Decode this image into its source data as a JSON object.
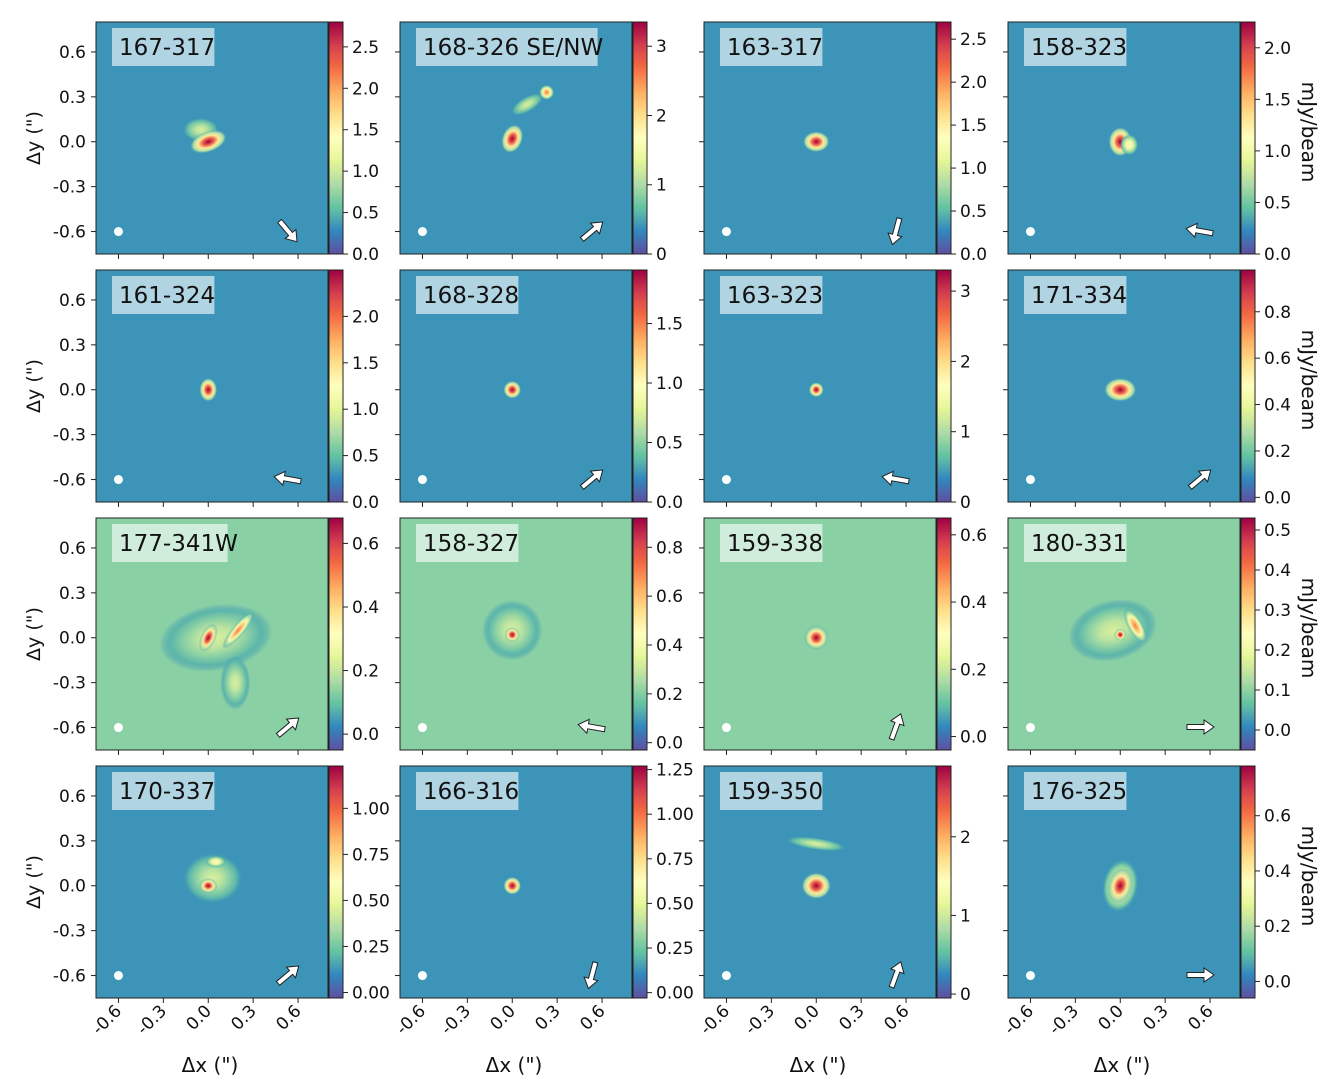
{
  "figure": {
    "xlabel": "Δx (\")",
    "ylabel": "Δy (\")",
    "colorbar_label": "mJy/beam",
    "axis_ticks": [
      "-0.6",
      "-0.3",
      "0.0",
      "0.3",
      "0.6"
    ],
    "axis_tick_values": [
      -0.6,
      -0.3,
      0.0,
      0.3,
      0.6
    ],
    "axis_range": [
      -0.75,
      0.8
    ],
    "colormap": [
      "#5e4fa2",
      "#3288bd",
      "#66c2a5",
      "#abdda4",
      "#e6f598",
      "#ffffbf",
      "#fee08b",
      "#fdae61",
      "#f46d43",
      "#d53e4f",
      "#9e0142"
    ]
  },
  "chart_data": [
    {
      "type": "heatmap",
      "title": "167-317",
      "xlabel": "Δx (\")",
      "ylabel": "Δy (\")",
      "xlim": [
        -0.75,
        0.8
      ],
      "ylim": [
        -0.75,
        0.8
      ],
      "colorbar": {
        "label": "mJy/beam",
        "range": [
          0.0,
          2.8
        ],
        "ticks": [
          "0.0",
          "0.5",
          "1.0",
          "1.5",
          "2.0",
          "2.5"
        ]
      },
      "beam": [
        -0.6,
        -0.6
      ],
      "arrow_direction": "down-right"
    },
    {
      "type": "heatmap",
      "title": "168-326 SE/NW",
      "xlabel": "Δx (\")",
      "ylabel": "Δy (\")",
      "xlim": [
        -0.75,
        0.8
      ],
      "ylim": [
        -0.75,
        0.8
      ],
      "colorbar": {
        "label": "mJy/beam",
        "range": [
          0.0,
          3.35
        ],
        "ticks": [
          "0",
          "1",
          "2",
          "3"
        ]
      },
      "beam": [
        -0.6,
        -0.6
      ],
      "arrow_direction": "up-right"
    },
    {
      "type": "heatmap",
      "title": "163-317",
      "xlabel": "Δx (\")",
      "ylabel": "Δy (\")",
      "xlim": [
        -0.75,
        0.8
      ],
      "ylim": [
        -0.75,
        0.8
      ],
      "colorbar": {
        "label": "mJy/beam",
        "range": [
          0.0,
          2.7
        ],
        "ticks": [
          "0.0",
          "0.5",
          "1.0",
          "1.5",
          "2.0",
          "2.5"
        ]
      },
      "beam": [
        -0.6,
        -0.6
      ],
      "arrow_direction": "down"
    },
    {
      "type": "heatmap",
      "title": "158-323",
      "xlabel": "Δx (\")",
      "ylabel": "Δy (\")",
      "xlim": [
        -0.75,
        0.8
      ],
      "ylim": [
        -0.75,
        0.8
      ],
      "colorbar": {
        "label": "mJy/beam",
        "range": [
          0.0,
          2.25
        ],
        "ticks": [
          "0.0",
          "0.5",
          "1.0",
          "1.5",
          "2.0"
        ]
      },
      "beam": [
        -0.6,
        -0.6
      ],
      "arrow_direction": "left"
    },
    {
      "type": "heatmap",
      "title": "161-324",
      "xlabel": "Δx (\")",
      "ylabel": "Δy (\")",
      "xlim": [
        -0.75,
        0.8
      ],
      "ylim": [
        -0.75,
        0.8
      ],
      "colorbar": {
        "label": "mJy/beam",
        "range": [
          0.0,
          2.5
        ],
        "ticks": [
          "0.0",
          "0.5",
          "1.0",
          "1.5",
          "2.0"
        ]
      },
      "beam": [
        -0.6,
        -0.6
      ],
      "arrow_direction": "left"
    },
    {
      "type": "heatmap",
      "title": "168-328",
      "xlabel": "Δx (\")",
      "ylabel": "Δy (\")",
      "xlim": [
        -0.75,
        0.8
      ],
      "ylim": [
        -0.75,
        0.8
      ],
      "colorbar": {
        "label": "mJy/beam",
        "range": [
          0.0,
          1.95
        ],
        "ticks": [
          "0.0",
          "0.5",
          "1.0",
          "1.5"
        ]
      },
      "beam": [
        -0.6,
        -0.6
      ],
      "arrow_direction": "up-right"
    },
    {
      "type": "heatmap",
      "title": "163-323",
      "xlabel": "Δx (\")",
      "ylabel": "Δy (\")",
      "xlim": [
        -0.75,
        0.8
      ],
      "ylim": [
        -0.75,
        0.8
      ],
      "colorbar": {
        "label": "mJy/beam",
        "range": [
          0.0,
          3.3
        ],
        "ticks": [
          "0",
          "1",
          "2",
          "3"
        ]
      },
      "beam": [
        -0.6,
        -0.6
      ],
      "arrow_direction": "left"
    },
    {
      "type": "heatmap",
      "title": "171-334",
      "xlabel": "Δx (\")",
      "ylabel": "Δy (\")",
      "xlim": [
        -0.75,
        0.8
      ],
      "ylim": [
        -0.75,
        0.8
      ],
      "colorbar": {
        "label": "mJy/beam",
        "range": [
          -0.02,
          0.98
        ],
        "ticks": [
          "0.0",
          "0.2",
          "0.4",
          "0.6",
          "0.8"
        ]
      },
      "beam": [
        -0.6,
        -0.6
      ],
      "arrow_direction": "up-right"
    },
    {
      "type": "heatmap",
      "title": "177-341W",
      "xlabel": "Δx (\")",
      "ylabel": "Δy (\")",
      "xlim": [
        -0.75,
        0.8
      ],
      "ylim": [
        -0.75,
        0.8
      ],
      "colorbar": {
        "label": "mJy/beam",
        "range": [
          -0.05,
          0.68
        ],
        "ticks": [
          "0.0",
          "0.2",
          "0.4",
          "0.6"
        ]
      },
      "beam": [
        -0.6,
        -0.6
      ],
      "arrow_direction": "up-right"
    },
    {
      "type": "heatmap",
      "title": "158-327",
      "xlabel": "Δx (\")",
      "ylabel": "Δy (\")",
      "xlim": [
        -0.75,
        0.8
      ],
      "ylim": [
        -0.75,
        0.8
      ],
      "colorbar": {
        "label": "mJy/beam",
        "range": [
          -0.03,
          0.92
        ],
        "ticks": [
          "0.0",
          "0.2",
          "0.4",
          "0.6",
          "0.8"
        ]
      },
      "beam": [
        -0.6,
        -0.6
      ],
      "arrow_direction": "left"
    },
    {
      "type": "heatmap",
      "title": "159-338",
      "xlabel": "Δx (\")",
      "ylabel": "Δy (\")",
      "xlim": [
        -0.75,
        0.8
      ],
      "ylim": [
        -0.75,
        0.8
      ],
      "colorbar": {
        "label": "mJy/beam",
        "range": [
          -0.04,
          0.65
        ],
        "ticks": [
          "0.0",
          "0.2",
          "0.4",
          "0.6"
        ]
      },
      "beam": [
        -0.6,
        -0.6
      ],
      "arrow_direction": "up"
    },
    {
      "type": "heatmap",
      "title": "180-331",
      "xlabel": "Δx (\")",
      "ylabel": "Δy (\")",
      "xlim": [
        -0.75,
        0.8
      ],
      "ylim": [
        -0.75,
        0.8
      ],
      "colorbar": {
        "label": "mJy/beam",
        "range": [
          -0.05,
          0.53
        ],
        "ticks": [
          "0.0",
          "0.1",
          "0.2",
          "0.3",
          "0.4",
          "0.5"
        ]
      },
      "beam": [
        -0.6,
        -0.6
      ],
      "arrow_direction": "right"
    },
    {
      "type": "heatmap",
      "title": "170-337",
      "xlabel": "Δx (\")",
      "ylabel": "Δy (\")",
      "xlim": [
        -0.75,
        0.8
      ],
      "ylim": [
        -0.75,
        0.8
      ],
      "colorbar": {
        "label": "mJy/beam",
        "range": [
          -0.03,
          1.23
        ],
        "ticks": [
          "0.00",
          "0.25",
          "0.50",
          "0.75",
          "1.00"
        ]
      },
      "beam": [
        -0.6,
        -0.6
      ],
      "arrow_direction": "up-right"
    },
    {
      "type": "heatmap",
      "title": "166-316",
      "xlabel": "Δx (\")",
      "ylabel": "Δy (\")",
      "xlim": [
        -0.75,
        0.8
      ],
      "ylim": [
        -0.75,
        0.8
      ],
      "colorbar": {
        "label": "mJy/beam",
        "range": [
          -0.03,
          1.27
        ],
        "ticks": [
          "0.00",
          "0.25",
          "0.50",
          "0.75",
          "1.00",
          "1.25"
        ]
      },
      "beam": [
        -0.6,
        -0.6
      ],
      "arrow_direction": "down"
    },
    {
      "type": "heatmap",
      "title": "159-350",
      "xlabel": "Δx (\")",
      "ylabel": "Δy (\")",
      "xlim": [
        -0.75,
        0.8
      ],
      "ylim": [
        -0.75,
        0.8
      ],
      "colorbar": {
        "label": "mJy/beam",
        "range": [
          -0.05,
          2.9
        ],
        "ticks": [
          "0",
          "1",
          "2"
        ]
      },
      "beam": [
        -0.6,
        -0.6
      ],
      "arrow_direction": "up"
    },
    {
      "type": "heatmap",
      "title": "176-325",
      "xlabel": "Δx (\")",
      "ylabel": "Δy (\")",
      "xlim": [
        -0.75,
        0.8
      ],
      "ylim": [
        -0.75,
        0.8
      ],
      "colorbar": {
        "label": "mJy/beam",
        "range": [
          -0.06,
          0.78
        ],
        "ticks": [
          "0.0",
          "0.2",
          "0.4",
          "0.6"
        ]
      },
      "beam": [
        -0.6,
        -0.6
      ],
      "arrow_direction": "right"
    }
  ]
}
